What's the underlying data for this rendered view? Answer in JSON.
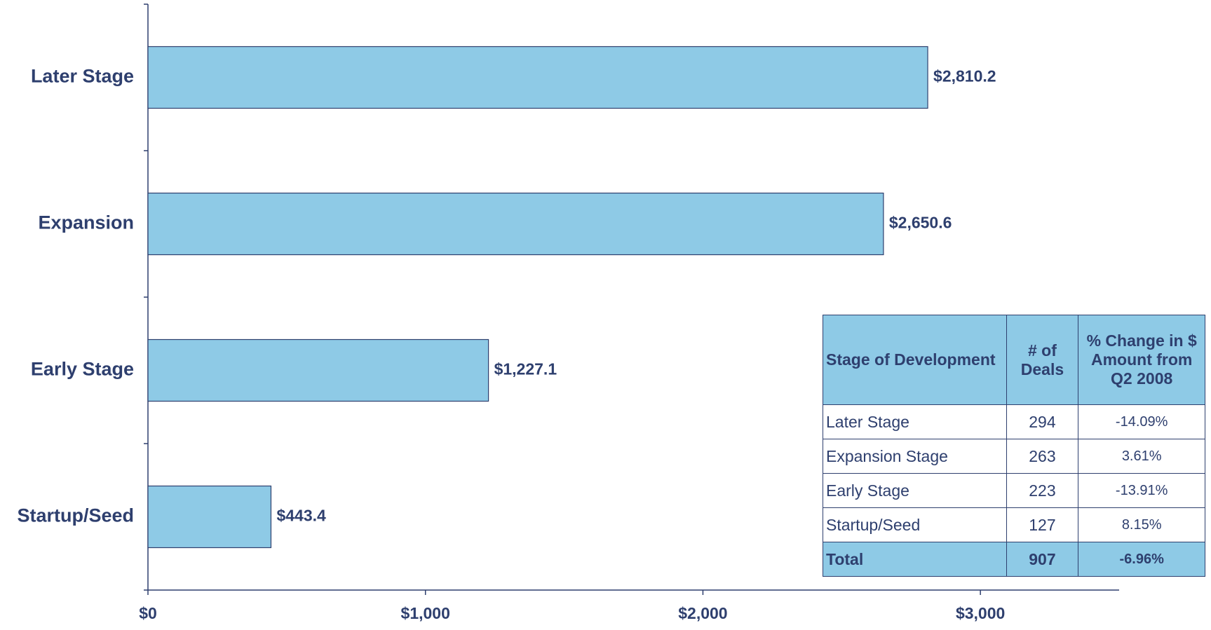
{
  "chart_data": {
    "type": "barh",
    "categories": [
      "Later Stage",
      "Expansion",
      "Early Stage",
      "Startup/Seed"
    ],
    "values": [
      2810.2,
      2650.6,
      1227.1,
      443.4
    ],
    "value_labels": [
      "$2,810.2",
      "$2,650.6",
      "$1,227.1",
      "$443.4"
    ],
    "color": "#8ecae6",
    "xlim": [
      0,
      3500
    ],
    "xticks": [
      {
        "value": 0,
        "label": "$0"
      },
      {
        "value": 1000,
        "label": "$1,000"
      },
      {
        "value": 2000,
        "label": "$2,000"
      },
      {
        "value": 3000,
        "label": "$3,000"
      }
    ]
  },
  "table": {
    "header": [
      "Stage of Development",
      "# of Deals",
      "% Change in $ Amount from Q2 2008"
    ],
    "rows": [
      [
        "Later Stage",
        "294",
        "-14.09%"
      ],
      [
        "Expansion Stage",
        "263",
        "3.61%"
      ],
      [
        "Early Stage",
        "223",
        "-13.91%"
      ],
      [
        "Startup/Seed",
        "127",
        "8.15%"
      ]
    ],
    "total": [
      "Total",
      "907",
      "-6.96%"
    ]
  }
}
